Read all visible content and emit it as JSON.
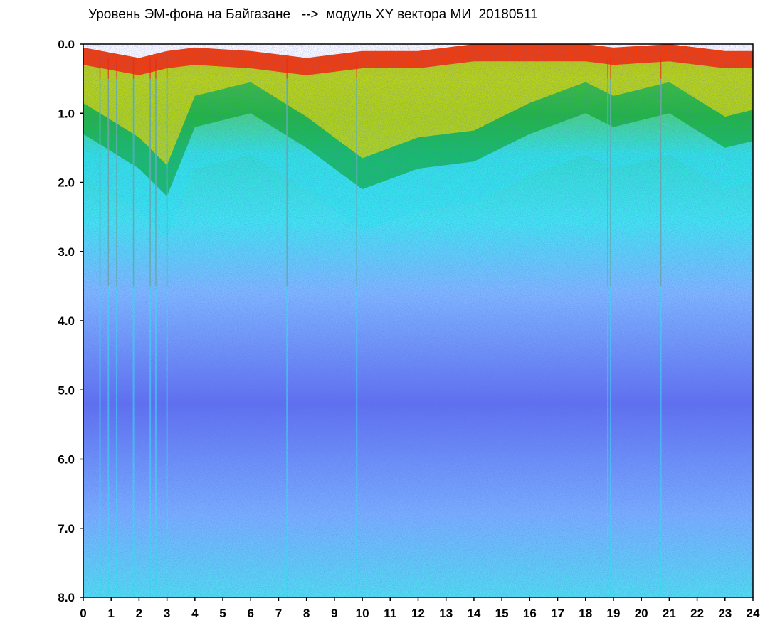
{
  "chart_data": {
    "type": "heatmap",
    "title": "Уровень ЭМ-фона на Байгазане   -->  модуль XY вектора МИ  20180511",
    "xlabel": "",
    "ylabel": "",
    "xlim": [
      0,
      24
    ],
    "ylim": [
      0,
      8
    ],
    "y_inverted": true,
    "x_ticks": [
      "0",
      "1",
      "2",
      "3",
      "4",
      "5",
      "6",
      "7",
      "8",
      "9",
      "10",
      "11",
      "12",
      "13",
      "14",
      "15",
      "16",
      "17",
      "18",
      "19",
      "20",
      "21",
      "22",
      "23",
      "24"
    ],
    "y_ticks": [
      "0.0",
      "1.0",
      "2.0",
      "3.0",
      "4.0",
      "5.0",
      "6.0",
      "7.0",
      "8.0"
    ],
    "grid": false,
    "colors": {
      "red": "#ff2000",
      "yellow": "#f0e000",
      "green": "#00a000",
      "cyan": "#30e8f0",
      "light_blue": "#80b8ff",
      "blue": "#4060f0",
      "dark_blue": "#1020c0"
    },
    "upper_boundary_by_hour": [
      {
        "hour": 0,
        "red_top": 0.05,
        "green_band": 1.3
      },
      {
        "hour": 2,
        "red_top": 0.2,
        "green_band": 1.8
      },
      {
        "hour": 3,
        "red_top": 0.1,
        "green_band": 2.2
      },
      {
        "hour": 4,
        "red_top": 0.05,
        "green_band": 1.2
      },
      {
        "hour": 6,
        "red_top": 0.1,
        "green_band": 1.0
      },
      {
        "hour": 8,
        "red_top": 0.2,
        "green_band": 1.5
      },
      {
        "hour": 10,
        "red_top": 0.1,
        "green_band": 2.1
      },
      {
        "hour": 12,
        "red_top": 0.1,
        "green_band": 1.8
      },
      {
        "hour": 14,
        "red_top": 0.0,
        "green_band": 1.7
      },
      {
        "hour": 16,
        "red_top": 0.0,
        "green_band": 1.3
      },
      {
        "hour": 18,
        "red_top": 0.0,
        "green_band": 1.0
      },
      {
        "hour": 19,
        "red_top": 0.05,
        "green_band": 1.2
      },
      {
        "hour": 21,
        "red_top": 0.0,
        "green_band": 1.0
      },
      {
        "hour": 23,
        "red_top": 0.1,
        "green_band": 1.5
      },
      {
        "hour": 24,
        "red_top": 0.1,
        "green_band": 1.4
      }
    ],
    "vertical_spike_hours": [
      0.6,
      0.9,
      1.2,
      1.8,
      2.4,
      2.6,
      3.0,
      7.3,
      9.8,
      18.8,
      18.9,
      20.7
    ]
  }
}
